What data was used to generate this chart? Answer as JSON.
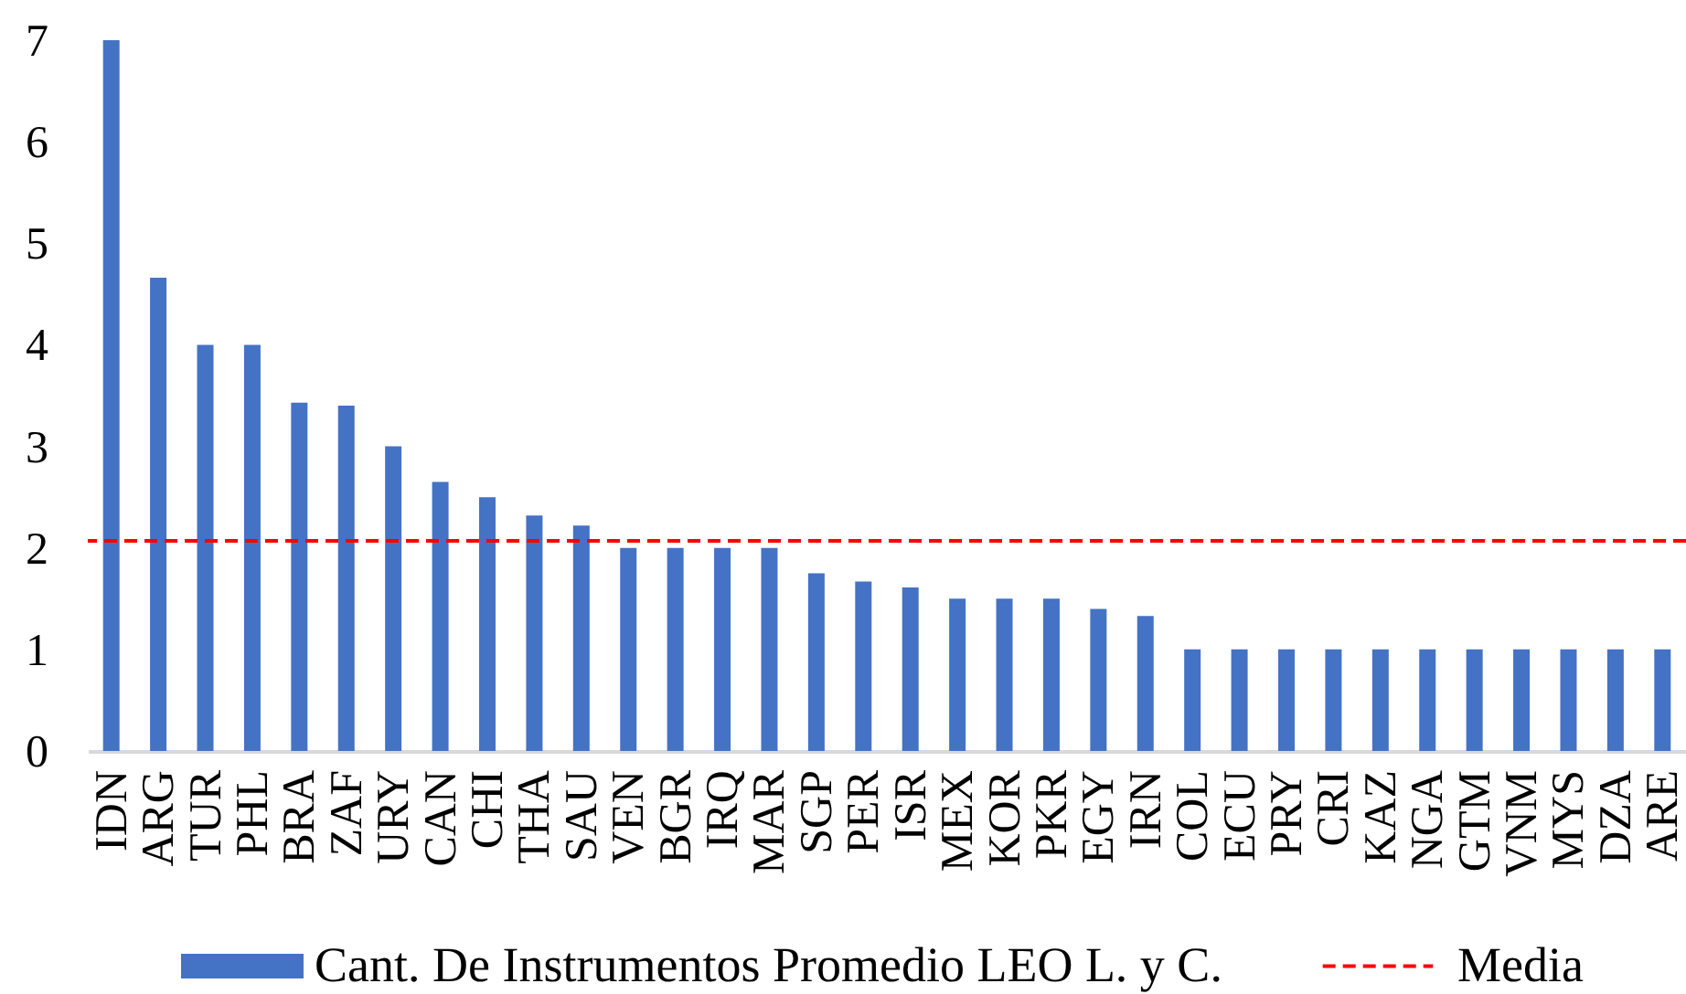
{
  "chart_data": {
    "type": "bar",
    "categories": [
      "IDN",
      "ARG",
      "TUR",
      "PHL",
      "BRA",
      "ZAF",
      "URY",
      "CAN",
      "CHI",
      "THA",
      "SAU",
      "VEN",
      "BGR",
      "IRQ",
      "MAR",
      "SGP",
      "PER",
      "ISR",
      "MEX",
      "KOR",
      "PKR",
      "EGY",
      "IRN",
      "COL",
      "ECU",
      "PRY",
      "CRI",
      "KAZ",
      "NGA",
      "GTM",
      "VNM",
      "MYS",
      "DZA",
      "ARE"
    ],
    "series": [
      {
        "name": "Cant. De Instrumentos Promedio LEO L. y C.",
        "color": "#4472c4",
        "values": [
          7,
          4.66,
          4,
          4,
          3.43,
          3.4,
          3,
          2.65,
          2.5,
          2.32,
          2.22,
          2,
          2,
          2,
          2,
          1.75,
          1.67,
          1.61,
          1.5,
          1.5,
          1.5,
          1.4,
          1.33,
          1,
          1,
          1,
          1,
          1,
          1,
          1,
          1,
          1,
          1,
          1
        ]
      }
    ],
    "ylim": [
      0,
      7
    ],
    "yticks": [
      0,
      1,
      2,
      3,
      4,
      5,
      6,
      7
    ],
    "grid": false,
    "legend": "bottom",
    "ref_lines": [
      {
        "axis": "y",
        "value": 2.07,
        "label": "Media",
        "color": "#ff0000",
        "line_style": "dashed"
      }
    ]
  }
}
